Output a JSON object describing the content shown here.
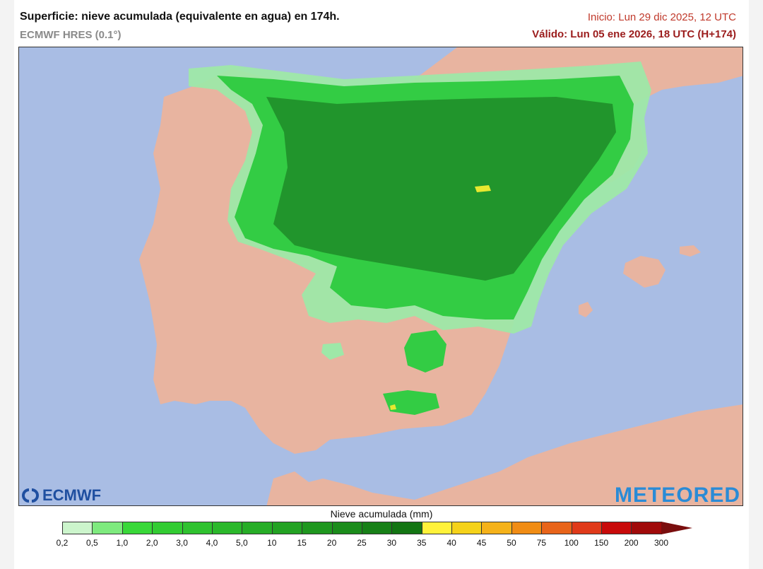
{
  "header": {
    "title": "Superficie: nieve acumulada (equivalente en agua) en 174h.",
    "model": "ECMWF HRES (0.1°)",
    "init": "Inicio: Lun 29 dic 2025, 12 UTC",
    "valid": "Válido: Lun 05 ene 2026, 18 UTC (H+174)"
  },
  "logos": {
    "ecmwf": "ECMWF",
    "meteored": "METEORED"
  },
  "legend": {
    "title": "Nieve acumulada (mm)",
    "ticks": [
      "0,2",
      "0,5",
      "1,0",
      "2,0",
      "3,0",
      "4,0",
      "5,0",
      "10",
      "15",
      "20",
      "25",
      "30",
      "35",
      "40",
      "45",
      "50",
      "75",
      "100",
      "150",
      "200",
      "300"
    ],
    "colors": [
      "#ccf5cc",
      "#7eea7e",
      "#39d839",
      "#33cc33",
      "#2fc22f",
      "#2bb82b",
      "#27ad27",
      "#23a223",
      "#1f971f",
      "#1b8c1b",
      "#178017",
      "#137513",
      "#fff23a",
      "#f5d21a",
      "#f5b21a",
      "#f08c14",
      "#e8641a",
      "#e03a1a",
      "#c80a0a",
      "#a00a0a"
    ],
    "arrow_color": "#7a0e0e"
  },
  "map_colors": {
    "sea": "#a9bde4",
    "land": "#e8b4a0",
    "snow_light": "#9ee8a8",
    "snow_mid": "#33cc44",
    "snow_dark": "#1f8f2a",
    "snow_peak": "#e8e830"
  }
}
